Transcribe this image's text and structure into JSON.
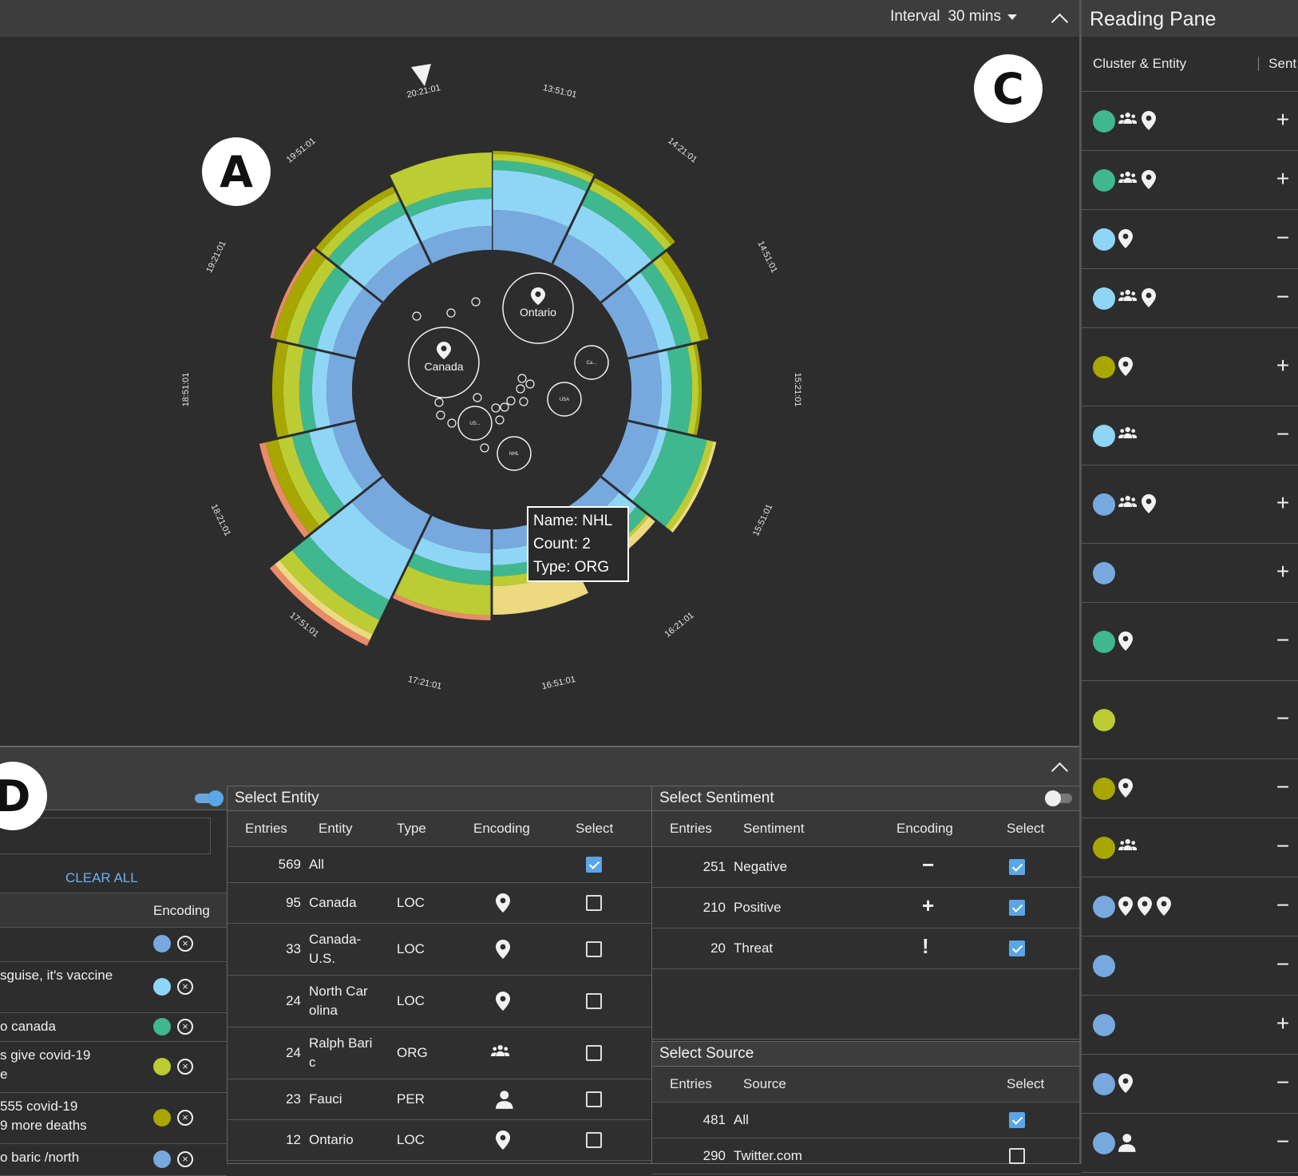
{
  "header": {
    "interval_label": "Interval",
    "interval_value": "30 mins"
  },
  "badges": {
    "a": "A",
    "c": "C",
    "d": "D"
  },
  "radial": {
    "time_labels": [
      "20:21:01",
      "13:51:01",
      "14:21:01",
      "14:51:01",
      "15:21:01",
      "15:51:01",
      "16:21:01",
      "16:51:01",
      "17:21:01",
      "17:51:01",
      "18:21:01",
      "18:51:01",
      "19:21:01",
      "19:51:01"
    ],
    "bubbles": [
      {
        "label": "Ontario",
        "icon": "location-pin-icon"
      },
      {
        "label": "Canada",
        "icon": "location-pin-icon"
      },
      {
        "label": "Ca..."
      },
      {
        "label": "USA"
      },
      {
        "label": "US..."
      },
      {
        "label": "NHL"
      }
    ],
    "tooltip": {
      "name": "Name: NHL",
      "count": "Count: 2",
      "type": "Type: ORG"
    }
  },
  "reading_pane": {
    "title": "Reading Pane",
    "col_cluster": "Cluster & Entity",
    "col_sentiment": "Sent",
    "rows": [
      {
        "color": "#3fb88f",
        "icons": [
          "group",
          "pin"
        ],
        "sign": "+"
      },
      {
        "color": "#3fb88f",
        "icons": [
          "group",
          "pin"
        ],
        "sign": "+"
      },
      {
        "color": "#8fd6f6",
        "icons": [
          "pin"
        ],
        "sign": "−"
      },
      {
        "color": "#8fd6f6",
        "icons": [
          "group",
          "pin"
        ],
        "sign": "−"
      },
      {
        "color": "#a8a600",
        "icons": [
          "pin"
        ],
        "sign": "+"
      },
      {
        "color": "#8fd6f6",
        "icons": [
          "group"
        ],
        "sign": "−"
      },
      {
        "color": "#77a9de",
        "icons": [
          "group",
          "pin"
        ],
        "sign": "+"
      },
      {
        "color": "#77a9de",
        "icons": [],
        "sign": "+"
      },
      {
        "color": "#3fb88f",
        "icons": [
          "pin"
        ],
        "sign": "−"
      },
      {
        "color": "#bccc33",
        "icons": [],
        "sign": "−"
      },
      {
        "color": "#a8a600",
        "icons": [
          "pin"
        ],
        "sign": "−"
      },
      {
        "color": "#a8a600",
        "icons": [
          "group"
        ],
        "sign": "−"
      },
      {
        "color": "#77a9de",
        "icons": [
          "pin",
          "pin",
          "pin"
        ],
        "sign": "−"
      },
      {
        "color": "#77a9de",
        "icons": [],
        "sign": "−"
      },
      {
        "color": "#77a9de",
        "icons": [],
        "sign": "+"
      },
      {
        "color": "#77a9de",
        "icons": [
          "pin"
        ],
        "sign": "−"
      },
      {
        "color": "#77a9de",
        "icons": [
          "person"
        ],
        "sign": "−"
      }
    ]
  },
  "left_panel": {
    "clear_all": "CLEAR ALL",
    "col_encoding": "Encoding",
    "rows": [
      {
        "text1": "",
        "text2": "",
        "color": "#77a9de"
      },
      {
        "text1": "sguise, it's vaccine",
        "text2": "",
        "color": "#8fd6f6"
      },
      {
        "text1": "o canada",
        "text2": "",
        "color": "#3fb88f"
      },
      {
        "text1": "s give covid-19",
        "text2": "e",
        "color": "#bccc33"
      },
      {
        "text1": "555 covid-19",
        "text2": "9 more deaths",
        "color": "#a8a600"
      },
      {
        "text1": "o baric /north",
        "text2": "",
        "color": "#77a9de"
      }
    ]
  },
  "entity_panel": {
    "title": "Select Entity",
    "headers": {
      "entries": "Entries",
      "entity": "Entity",
      "type": "Type",
      "encoding": "Encoding",
      "select": "Select"
    },
    "rows": [
      {
        "entries": "569",
        "entity1": "All",
        "entity2": "",
        "type": "",
        "icon": "",
        "checked": true
      },
      {
        "entries": "95",
        "entity1": "Canada",
        "entity2": "",
        "type": "LOC",
        "icon": "pin",
        "checked": false
      },
      {
        "entries": "33",
        "entity1": "Canada-",
        "entity2": "U.S.",
        "type": "LOC",
        "icon": "pin",
        "checked": false
      },
      {
        "entries": "24",
        "entity1": "North Car",
        "entity2": "olina",
        "type": "LOC",
        "icon": "pin",
        "checked": false
      },
      {
        "entries": "24",
        "entity1": "Ralph Bari",
        "entity2": "c",
        "type": "ORG",
        "icon": "group",
        "checked": false
      },
      {
        "entries": "23",
        "entity1": "Fauci",
        "entity2": "",
        "type": "PER",
        "icon": "person",
        "checked": false
      },
      {
        "entries": "12",
        "entity1": "Ontario",
        "entity2": "",
        "type": "LOC",
        "icon": "pin",
        "checked": false
      }
    ]
  },
  "sentiment_panel": {
    "title": "Select Sentiment",
    "headers": {
      "entries": "Entries",
      "sentiment": "Sentiment",
      "encoding": "Encoding",
      "select": "Select"
    },
    "rows": [
      {
        "entries": "251",
        "label": "Negative",
        "enc": "−",
        "checked": true
      },
      {
        "entries": "210",
        "label": "Positive",
        "enc": "+",
        "checked": true
      },
      {
        "entries": "20",
        "label": "Threat",
        "enc": "!",
        "checked": true
      }
    ]
  },
  "source_panel": {
    "title": "Select Source",
    "headers": {
      "entries": "Entries",
      "source": "Source",
      "select": "Select"
    },
    "rows": [
      {
        "entries": "481",
        "label": "All",
        "checked": true
      },
      {
        "entries": "290",
        "label": "Twitter.com",
        "checked": false
      }
    ]
  }
}
